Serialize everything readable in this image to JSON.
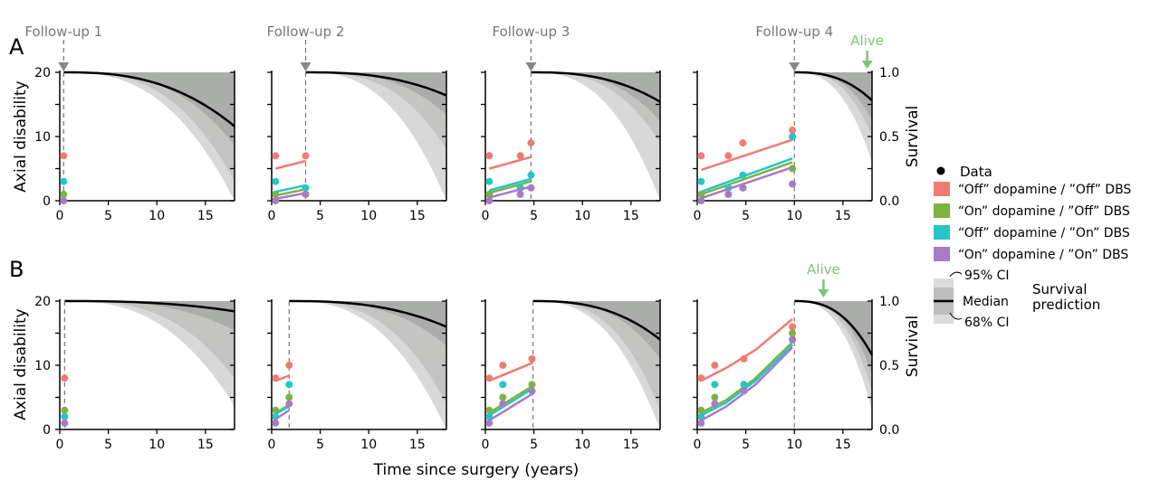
{
  "figure": {
    "xlabel": "Time since surgery (years)",
    "ylabel": "Axial disability",
    "y2label": "Survival",
    "row_labels": [
      "A",
      "B"
    ],
    "follow_up_labels": [
      "Follow-up 1",
      "Follow-up 2",
      "Follow-up 3",
      "Follow-up 4"
    ],
    "alive_label": "Alive",
    "x_ticks": [
      "0",
      "5",
      "10",
      "15"
    ],
    "y_ticks": [
      "0",
      "10",
      "20"
    ],
    "y2_ticks": [
      "0.0",
      "0.5",
      "1.0"
    ]
  },
  "legend": {
    "data_label": "Data",
    "series": [
      {
        "label": "“Off” dopamine / ”Off” DBS",
        "color": "#f07b72"
      },
      {
        "label": "“On” dopamine / ”Off” DBS",
        "color": "#7cb342"
      },
      {
        "label": "“Off” dopamine / ”On” DBS",
        "color": "#26c6c6"
      },
      {
        "label": "“On” dopamine / ”On” DBS",
        "color": "#a77bc6"
      }
    ],
    "ci95_label": "95% CI",
    "median_label": "Median",
    "ci68_label": "68% CI",
    "survival_label_1": "Survival",
    "survival_label_2": "prediction"
  },
  "colors": {
    "alive": "#7cc576",
    "band95": "#d9d8d8",
    "band68": "#c4c4c2",
    "band_inner": "#abadab",
    "median": "#000000",
    "marker": "#888888"
  },
  "chart_data": [
    {
      "type": "line",
      "row": "A",
      "panel": 1,
      "title": "Follow-up 1",
      "xlim": [
        0,
        18
      ],
      "ylim": [
        0,
        20
      ],
      "y2lim": [
        0,
        1
      ],
      "followup_time": 0.4,
      "series": [
        {
          "name": "“Off” dopamine / ”Off” DBS",
          "points": [
            [
              0.4,
              7
            ]
          ],
          "fit": null
        },
        {
          "name": "“On” dopamine / ”Off” DBS",
          "points": [
            [
              0.4,
              1
            ]
          ],
          "fit": null
        },
        {
          "name": "“Off” dopamine / ”On” DBS",
          "points": [
            [
              0.4,
              3
            ]
          ],
          "fit": null
        },
        {
          "name": "“On” dopamine / ”On” DBS",
          "points": [
            [
              0.4,
              0
            ]
          ],
          "fit": null
        }
      ],
      "survival": {
        "start": 0.4,
        "end": 18,
        "median_end": 0.58,
        "ci68_end": 0.15,
        "ci95_end": 0.0
      }
    },
    {
      "type": "line",
      "row": "A",
      "panel": 2,
      "title": "Follow-up 2",
      "xlim": [
        0,
        18
      ],
      "ylim": [
        0,
        20
      ],
      "y2lim": [
        0,
        1
      ],
      "followup_time": 3.5,
      "series": [
        {
          "name": "“Off” dopamine / ”Off” DBS",
          "points": [
            [
              0.4,
              7
            ],
            [
              3.5,
              7
            ]
          ],
          "fit": [
            [
              0.4,
              5
            ],
            [
              3.5,
              6.2
            ]
          ]
        },
        {
          "name": "“On” dopamine / ”Off” DBS",
          "points": [
            [
              0.4,
              1
            ],
            [
              3.5,
              1
            ]
          ],
          "fit": [
            [
              0.4,
              0.8
            ],
            [
              3.5,
              1.8
            ]
          ]
        },
        {
          "name": "“Off” dopamine / ”On” DBS",
          "points": [
            [
              0.4,
              3
            ],
            [
              3.5,
              2
            ]
          ],
          "fit": [
            [
              0.4,
              1.4
            ],
            [
              3.5,
              2.4
            ]
          ]
        },
        {
          "name": "“On” dopamine / ”On” DBS",
          "points": [
            [
              0.4,
              0
            ],
            [
              3.5,
              1
            ]
          ],
          "fit": [
            [
              0.4,
              0.3
            ],
            [
              3.5,
              1.2
            ]
          ]
        }
      ],
      "survival": {
        "start": 3.5,
        "end": 18,
        "median_end": 0.82,
        "ci68_end": 0.4,
        "ci95_end": 0.0
      }
    },
    {
      "type": "line",
      "row": "A",
      "panel": 3,
      "title": "Follow-up 3",
      "xlim": [
        0,
        18
      ],
      "ylim": [
        0,
        20
      ],
      "y2lim": [
        0,
        1
      ],
      "followup_time": 4.7,
      "series": [
        {
          "name": "“Off” dopamine / ”Off” DBS",
          "points": [
            [
              0.4,
              7
            ],
            [
              3.6,
              7
            ],
            [
              4.7,
              9
            ]
          ],
          "fit": [
            [
              0.4,
              5
            ],
            [
              4.7,
              6.8
            ]
          ]
        },
        {
          "name": "“On” dopamine / ”Off” DBS",
          "points": [
            [
              0.4,
              1
            ],
            [
              3.6,
              1
            ],
            [
              4.7,
              2
            ]
          ],
          "fit": [
            [
              0.4,
              1.2
            ],
            [
              4.7,
              3
            ]
          ]
        },
        {
          "name": "“Off” dopamine / ”On” DBS",
          "points": [
            [
              0.4,
              3
            ],
            [
              3.6,
              2
            ],
            [
              4.7,
              4
            ]
          ],
          "fit": [
            [
              0.4,
              1.6
            ],
            [
              4.7,
              3.4
            ]
          ]
        },
        {
          "name": "“On” dopamine / ”On” DBS",
          "points": [
            [
              0.4,
              0
            ],
            [
              3.6,
              1
            ],
            [
              4.7,
              2
            ]
          ],
          "fit": [
            [
              0.4,
              0.5
            ],
            [
              4.7,
              2.2
            ]
          ]
        }
      ],
      "survival": {
        "start": 4.7,
        "end": 18,
        "median_end": 0.77,
        "ci68_end": 0.45,
        "ci95_end": 0.0
      }
    },
    {
      "type": "line",
      "row": "A",
      "panel": 4,
      "title": "Follow-up 4",
      "xlim": [
        0,
        18
      ],
      "ylim": [
        0,
        20
      ],
      "y2lim": [
        0,
        1
      ],
      "followup_time": 10,
      "alive_time": 17.5,
      "series": [
        {
          "name": "“Off” dopamine / ”Off” DBS",
          "points": [
            [
              0.4,
              7
            ],
            [
              3.2,
              7
            ],
            [
              4.7,
              9
            ],
            [
              9.8,
              11
            ]
          ],
          "fit": [
            [
              0.4,
              4.8
            ],
            [
              9.8,
              9.5
            ]
          ]
        },
        {
          "name": "“On” dopamine / ”Off” DBS",
          "points": [
            [
              0.4,
              1
            ],
            [
              3.2,
              1
            ],
            [
              4.7,
              2
            ],
            [
              9.8,
              5
            ]
          ],
          "fit": [
            [
              0.4,
              1
            ],
            [
              9.8,
              6
            ]
          ]
        },
        {
          "name": "“Off” dopamine / ”On” DBS",
          "points": [
            [
              0.4,
              3
            ],
            [
              3.2,
              2
            ],
            [
              4.7,
              4
            ],
            [
              9.8,
              10
            ]
          ],
          "fit": [
            [
              0.4,
              1.4
            ],
            [
              9.8,
              6.6
            ]
          ]
        },
        {
          "name": "“On” dopamine / ”On” DBS",
          "points": [
            [
              0.4,
              0
            ],
            [
              3.2,
              1
            ],
            [
              4.7,
              2
            ],
            [
              9.8,
              2.6
            ]
          ],
          "fit": [
            [
              0.4,
              0.4
            ],
            [
              9.8,
              5.2
            ]
          ]
        }
      ],
      "survival": {
        "start": 10,
        "end": 18,
        "median_end": 0.78,
        "ci68_end": 0.5,
        "ci95_end": 0.3
      }
    },
    {
      "type": "line",
      "row": "B",
      "panel": 1,
      "xlim": [
        0,
        18
      ],
      "ylim": [
        0,
        20
      ],
      "y2lim": [
        0,
        1
      ],
      "followup_time": 0.5,
      "series": [
        {
          "name": "“Off” dopamine / ”Off” DBS",
          "points": [
            [
              0.5,
              8
            ]
          ],
          "fit": null
        },
        {
          "name": "“On” dopamine / ”Off” DBS",
          "points": [
            [
              0.5,
              3
            ]
          ],
          "fit": null
        },
        {
          "name": "“Off” dopamine / ”On” DBS",
          "points": [
            [
              0.5,
              2
            ]
          ],
          "fit": null
        },
        {
          "name": "“On” dopamine / ”On” DBS",
          "points": [
            [
              0.5,
              1
            ]
          ],
          "fit": null
        }
      ],
      "survival": {
        "start": 0.5,
        "end": 18,
        "median_end": 0.92,
        "ci68_end": 0.4,
        "ci95_end": 0.18
      }
    },
    {
      "type": "line",
      "row": "B",
      "panel": 2,
      "xlim": [
        0,
        18
      ],
      "ylim": [
        0,
        20
      ],
      "y2lim": [
        0,
        1
      ],
      "followup_time": 1.8,
      "series": [
        {
          "name": "“Off” dopamine / ”Off” DBS",
          "points": [
            [
              0.4,
              8
            ],
            [
              1.8,
              10
            ]
          ],
          "fit": [
            [
              0.4,
              7.6
            ],
            [
              1.8,
              8.4
            ]
          ]
        },
        {
          "name": "“On” dopamine / ”Off” DBS",
          "points": [
            [
              0.4,
              3
            ],
            [
              1.8,
              5
            ]
          ],
          "fit": [
            [
              0.4,
              2.6
            ],
            [
              1.8,
              3.8
            ]
          ]
        },
        {
          "name": "“Off” dopamine / ”On” DBS",
          "points": [
            [
              0.4,
              2
            ],
            [
              1.8,
              7
            ]
          ],
          "fit": [
            [
              0.4,
              2.4
            ],
            [
              1.8,
              3.6
            ]
          ]
        },
        {
          "name": "“On” dopamine / ”On” DBS",
          "points": [
            [
              0.4,
              1
            ],
            [
              1.8,
              4
            ]
          ],
          "fit": [
            [
              0.4,
              1.6
            ],
            [
              1.8,
              3
            ]
          ]
        }
      ],
      "survival": {
        "start": 1.8,
        "end": 18,
        "median_end": 0.8,
        "ci68_end": 0.2,
        "ci95_end": 0.0
      }
    },
    {
      "type": "line",
      "row": "B",
      "panel": 3,
      "xlim": [
        0,
        18
      ],
      "ylim": [
        0,
        20
      ],
      "y2lim": [
        0,
        1
      ],
      "followup_time": 4.9,
      "series": [
        {
          "name": "“Off” dopamine / ”Off” DBS",
          "points": [
            [
              0.4,
              8
            ],
            [
              1.8,
              10
            ],
            [
              4.8,
              11
            ]
          ],
          "fit": [
            [
              0.4,
              7.6
            ],
            [
              4.9,
              10.4
            ]
          ]
        },
        {
          "name": "“On” dopamine / ”Off” DBS",
          "points": [
            [
              0.4,
              3
            ],
            [
              1.8,
              5
            ],
            [
              4.8,
              7
            ]
          ],
          "fit": [
            [
              0.4,
              2.6
            ],
            [
              4.9,
              6.8
            ]
          ]
        },
        {
          "name": "“Off” dopamine / ”On” DBS",
          "points": [
            [
              0.4,
              2
            ],
            [
              1.8,
              7
            ],
            [
              4.8,
              6
            ]
          ],
          "fit": [
            [
              0.4,
              2.2
            ],
            [
              4.9,
              6.4
            ]
          ]
        },
        {
          "name": "“On” dopamine / ”On” DBS",
          "points": [
            [
              0.4,
              1
            ],
            [
              1.8,
              4
            ],
            [
              4.8,
              6
            ]
          ],
          "fit": [
            [
              0.4,
              1.4
            ],
            [
              4.9,
              5.6
            ]
          ]
        }
      ],
      "survival": {
        "start": 4.9,
        "end": 18,
        "median_end": 0.7,
        "ci68_end": 0.15,
        "ci95_end": 0.0
      }
    },
    {
      "type": "line",
      "row": "B",
      "panel": 4,
      "xlim": [
        0,
        18
      ],
      "ylim": [
        0,
        20
      ],
      "y2lim": [
        0,
        1
      ],
      "followup_time": 10,
      "alive_time": 13,
      "series": [
        {
          "name": "“Off” dopamine / ”Off” DBS",
          "points": [
            [
              0.4,
              8
            ],
            [
              1.8,
              10
            ],
            [
              4.8,
              11
            ],
            [
              9.8,
              16
            ]
          ],
          "fit": [
            [
              0.4,
              7.6
            ],
            [
              3,
              9.6
            ],
            [
              6,
              12.4
            ],
            [
              9.8,
              17.2
            ]
          ]
        },
        {
          "name": "“On” dopamine / ”Off” DBS",
          "points": [
            [
              0.4,
              3
            ],
            [
              1.8,
              5
            ],
            [
              4.8,
              7
            ],
            [
              9.8,
              15
            ]
          ],
          "fit": [
            [
              0.4,
              2.6
            ],
            [
              3,
              4.6
            ],
            [
              6,
              8
            ],
            [
              9.8,
              13.6
            ]
          ]
        },
        {
          "name": "“Off” dopamine / ”On” DBS",
          "points": [
            [
              0.4,
              2
            ],
            [
              1.8,
              7
            ],
            [
              4.8,
              7
            ],
            [
              9.8,
              14
            ]
          ],
          "fit": [
            [
              0.4,
              2.2
            ],
            [
              3,
              4.2
            ],
            [
              6,
              7.6
            ],
            [
              9.8,
              13.2
            ]
          ]
        },
        {
          "name": "“On” dopamine / ”On” DBS",
          "points": [
            [
              0.4,
              1
            ],
            [
              1.8,
              4
            ],
            [
              4.8,
              6
            ],
            [
              9.8,
              14
            ]
          ],
          "fit": [
            [
              0.4,
              1.4
            ],
            [
              3,
              3.6
            ],
            [
              6,
              7
            ],
            [
              9.8,
              12.8
            ]
          ]
        }
      ],
      "survival": {
        "start": 10,
        "end": 18,
        "median_end": 0.58,
        "ci68_end": 0.3,
        "ci95_end": 0.15
      }
    }
  ]
}
